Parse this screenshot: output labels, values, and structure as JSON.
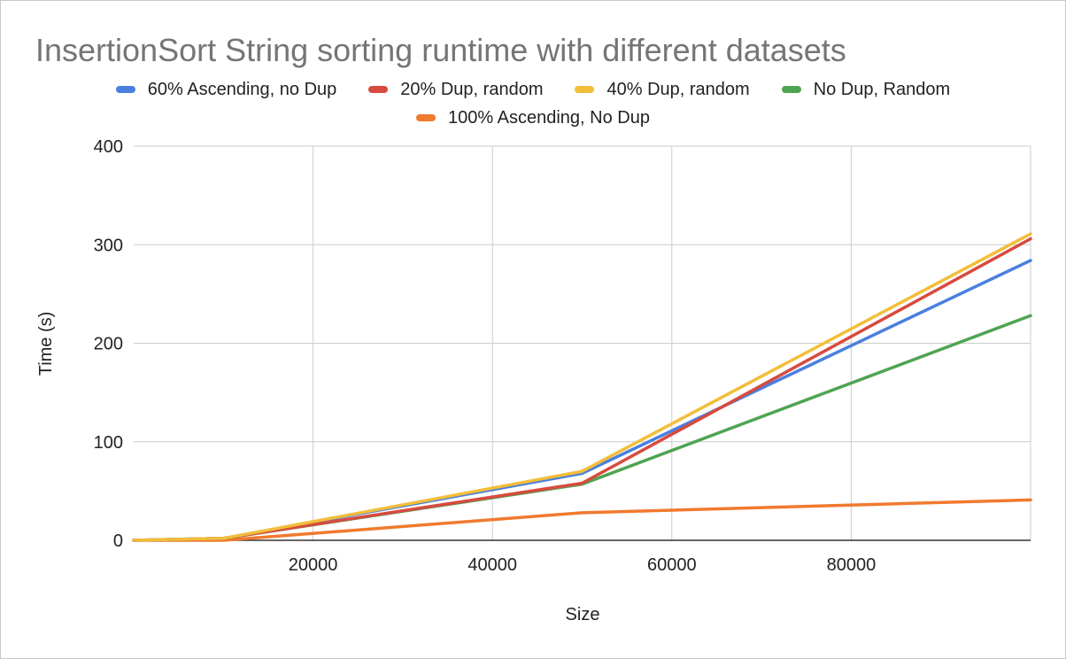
{
  "chart_data": {
    "type": "line",
    "title": "InsertionSort String sorting runtime with different datasets",
    "xlabel": "Size",
    "ylabel": "Time (s)",
    "xlim": [
      0,
      100000
    ],
    "ylim": [
      0,
      400
    ],
    "xticks": [
      20000,
      40000,
      60000,
      80000
    ],
    "yticks": [
      0,
      100,
      200,
      300,
      400
    ],
    "xtick_labels": [
      "20000",
      "40000",
      "60000",
      "80000"
    ],
    "ytick_labels": [
      "0",
      "100",
      "200",
      "300",
      "400"
    ],
    "grid": true,
    "legend_position": "top",
    "x": [
      0,
      10000,
      50000,
      100000
    ],
    "series": [
      {
        "name": "60% Ascending, no Dup",
        "color": "#4a7fe0",
        "values": [
          0,
          2,
          68,
          284
        ]
      },
      {
        "name": "20% Dup, random",
        "color": "#d64b3e",
        "values": [
          0,
          2,
          58,
          306
        ]
      },
      {
        "name": "40% Dup, random",
        "color": "#f2be3a",
        "values": [
          0,
          2,
          70,
          311
        ]
      },
      {
        "name": "No Dup, Random",
        "color": "#4ea452",
        "values": [
          0,
          2,
          57,
          228
        ]
      },
      {
        "name": "100% Ascending, No Dup",
        "color": "#f07a2e",
        "values": [
          0,
          0,
          28,
          41
        ]
      }
    ]
  }
}
